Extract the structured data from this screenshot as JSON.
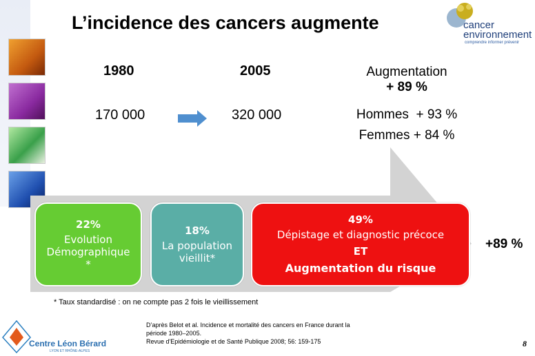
{
  "title": "L’incidence des cancers augmente",
  "logo": {
    "line1": "cancer",
    "line2": "environnement",
    "tagline": "comprendre informer prévenir",
    "mark_color": "#b9a21a"
  },
  "years": {
    "y1980_label": "1980",
    "y2005_label": "2005",
    "y1980_value": "170 000",
    "y2005_value": "320 000"
  },
  "augmentation": {
    "label": "Augmentation",
    "value": "+ 89 %",
    "hommes": "Hommes  + 93 %",
    "femmes": "Femmes + 84 %"
  },
  "boxes": [
    {
      "pct": "22%",
      "text1": "Evolution",
      "text2": "Démographique",
      "text3": "*",
      "color": "#66cc33"
    },
    {
      "pct": "18%",
      "text1": "La population",
      "text2": "vieillit*",
      "color": "#5aaea6"
    },
    {
      "pct": "49%",
      "text1": "Dépistage et diagnostic précoce",
      "text2": "ET",
      "text3": "Augmentation du risque",
      "color": "#ee1111"
    }
  ],
  "total": "+89 %",
  "footnote": "* Taux  standardisé : on ne compte pas 2 fois le vieillissement",
  "source": {
    "line1": "D’après Belot et al. Incidence et mortalité des cancers en France durant la",
    "line2": "période  1980–2005.",
    "line3": "Revue  d'Epidémiologie  et de Santé Publique 2008;  56: 159-175"
  },
  "footer_logo": {
    "name": "Centre Léon Bérard",
    "sub": "LYON ET RHÔNE-ALPES"
  },
  "page_number": "8",
  "colors": {
    "arrow_blue": "#4f8fcf",
    "big_arrow": "#d3d3d3"
  }
}
